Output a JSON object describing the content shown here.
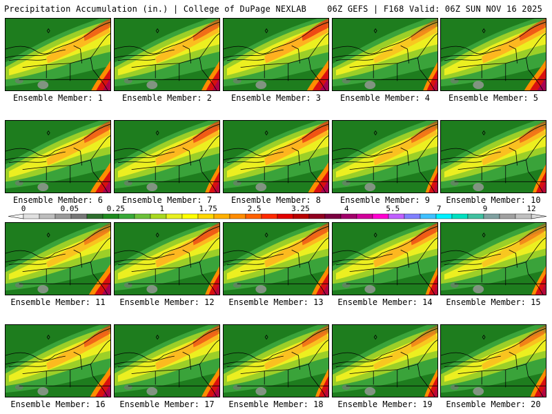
{
  "header": {
    "left": "Precipitation Accumulation (in.) | College of DuPage NEXLAB",
    "right": "06Z GEFS | F168 Valid: 06Z SUN NOV 16 2025"
  },
  "member_prefix": "Ensemble Member:",
  "members": [
    {
      "label": "Ensemble Member: 1",
      "wet": 0.55,
      "east": 0.8
    },
    {
      "label": "Ensemble Member: 2",
      "wet": 0.5,
      "east": 0.75
    },
    {
      "label": "Ensemble Member: 3",
      "wet": 0.7,
      "east": 0.9
    },
    {
      "label": "Ensemble Member: 4",
      "wet": 0.35,
      "east": 0.6
    },
    {
      "label": "Ensemble Member: 5",
      "wet": 0.6,
      "east": 0.9
    },
    {
      "label": "Ensemble Member: 6",
      "wet": 0.55,
      "east": 0.85
    },
    {
      "label": "Ensemble Member: 7",
      "wet": 0.6,
      "east": 0.6
    },
    {
      "label": "Ensemble Member: 8",
      "wet": 0.65,
      "east": 0.85
    },
    {
      "label": "Ensemble Member: 9",
      "wet": 0.45,
      "east": 0.5
    },
    {
      "label": "Ensemble Member: 10",
      "wet": 0.45,
      "east": 0.55
    },
    {
      "label": "Ensemble Member: 11",
      "wet": 0.4,
      "east": 0.9
    },
    {
      "label": "Ensemble Member: 12",
      "wet": 0.6,
      "east": 0.6
    },
    {
      "label": "Ensemble Member: 13",
      "wet": 0.55,
      "east": 0.7
    },
    {
      "label": "Ensemble Member: 14",
      "wet": 0.6,
      "east": 0.5
    },
    {
      "label": "Ensemble Member: 15",
      "wet": 0.35,
      "east": 0.6
    },
    {
      "label": "Ensemble Member: 16",
      "wet": 0.55,
      "east": 0.85
    },
    {
      "label": "Ensemble Member: 17",
      "wet": 0.55,
      "east": 0.75
    },
    {
      "label": "Ensemble Member: 18",
      "wet": 0.45,
      "east": 0.55
    },
    {
      "label": "Ensemble Member: 19",
      "wet": 0.35,
      "east": 0.55
    },
    {
      "label": "Ensemble Member: 20",
      "wet": 0.4,
      "east": 0.65
    }
  ],
  "colorbar": {
    "labels": [
      "0",
      "0.05",
      "0.25",
      "1",
      "1.75",
      "2.5",
      "3.25",
      "4",
      "5.5",
      "7",
      "9",
      "12"
    ],
    "colors": [
      "#e0e0e0",
      "#bdbdbd",
      "#9a9a9a",
      "#777777",
      "#2e6e2e",
      "#1f8a1f",
      "#39a839",
      "#6cc03a",
      "#a8d820",
      "#e8f020",
      "#ffff00",
      "#ffd700",
      "#ffb000",
      "#ff8c00",
      "#ff6000",
      "#ff2a00",
      "#e00000",
      "#b80000",
      "#900020",
      "#7a0040",
      "#a0006a",
      "#d0009a",
      "#ff00d0",
      "#c060ff",
      "#8080ff",
      "#40c0ff",
      "#00f0ff",
      "#00e0c0",
      "#40c0a0",
      "#80a0a0",
      "#a0a0a0",
      "#c0c0c0"
    ]
  }
}
